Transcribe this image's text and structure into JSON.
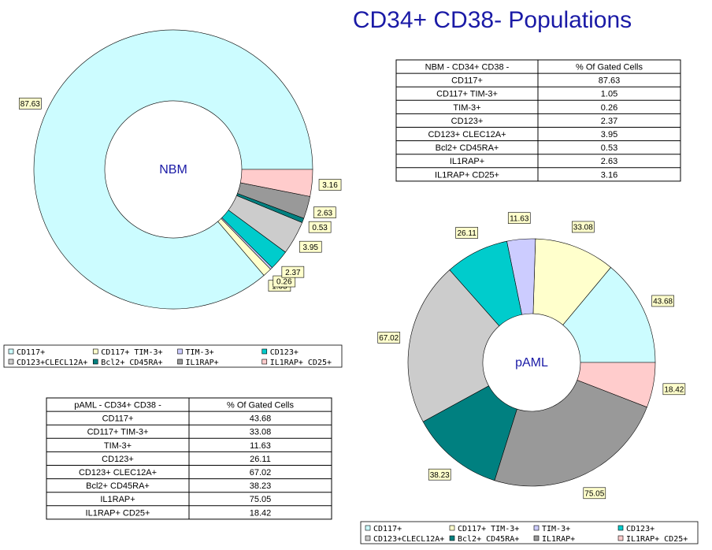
{
  "title": "CD34+ CD38- Populations",
  "chart_data": [
    {
      "type": "donut",
      "center_label": "NBM",
      "categories": [
        "CD117+",
        "CD117+ TIM-3+",
        "TIM-3+",
        "CD123+",
        "CD123+CLECL12A+",
        "Bcl2+ CD45RA+",
        "IL1RAP+",
        "IL1RAP+ CD25+"
      ],
      "values": [
        87.63,
        1.05,
        0.26,
        2.37,
        3.95,
        0.53,
        2.63,
        3.16
      ],
      "colors": [
        "#ccfcff",
        "#ffffcc",
        "#ccccff",
        "#00cccc",
        "#cccccc",
        "#008080",
        "#999999",
        "#ffcccc"
      ]
    },
    {
      "type": "donut",
      "center_label": "pAML",
      "categories": [
        "CD117+",
        "CD117+ TIM-3+",
        "TIM-3+",
        "CD123+",
        "CD123+CLECL12A+",
        "Bcl2+ CD45RA+",
        "IL1RAP+",
        "IL1RAP+ CD25+"
      ],
      "values": [
        43.68,
        33.08,
        11.63,
        26.11,
        67.02,
        38.23,
        75.05,
        18.42
      ],
      "colors": [
        "#ccfcff",
        "#ffffcc",
        "#ccccff",
        "#00cccc",
        "#cccccc",
        "#008080",
        "#999999",
        "#ffcccc"
      ]
    }
  ],
  "tables": [
    {
      "header": [
        "NBM - CD34+ CD38 -",
        "% Of Gated Cells"
      ],
      "rows": [
        [
          "CD117+",
          87.63
        ],
        [
          "CD117+ TIM-3+",
          1.05
        ],
        [
          "TIM-3+",
          0.26
        ],
        [
          "CD123+",
          2.37
        ],
        [
          "CD123+ CLEC12A+",
          3.95
        ],
        [
          "Bcl2+ CD45RA+",
          0.53
        ],
        [
          "IL1RAP+",
          2.63
        ],
        [
          "IL1RAP+ CD25+",
          3.16
        ]
      ]
    },
    {
      "header": [
        "pAML - CD34+ CD38 -",
        "% Of Gated Cells"
      ],
      "rows": [
        [
          "CD117+",
          43.68
        ],
        [
          "CD117+ TIM-3+",
          33.08
        ],
        [
          "TIM-3+",
          11.63
        ],
        [
          "CD123+",
          26.11
        ],
        [
          "CD123+ CLEC12A+",
          67.02
        ],
        [
          "Bcl2+ CD45RA+",
          38.23
        ],
        [
          "IL1RAP+",
          75.05
        ],
        [
          "IL1RAP+ CD25+",
          18.42
        ]
      ]
    }
  ]
}
